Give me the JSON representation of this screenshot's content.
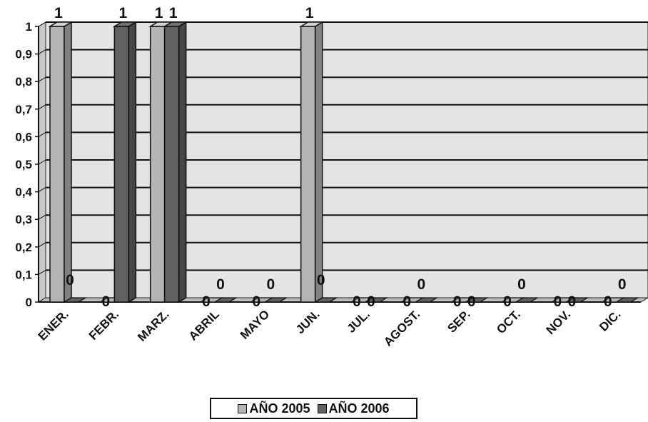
{
  "chart_data": {
    "type": "bar",
    "title": "",
    "xlabel": "",
    "ylabel": "",
    "categories": [
      "ENER.",
      "FEBR.",
      "MARZ.",
      "ABRIL",
      "MAYO",
      "JUN.",
      "JUL.",
      "AGOST.",
      "SEP.",
      "OCT.",
      "NOV.",
      "DIC."
    ],
    "series": [
      {
        "name": "AÑO 2005",
        "values": [
          1,
          0,
          1,
          0,
          0,
          1,
          0,
          0,
          0,
          0,
          0,
          0
        ],
        "color": "#b4b4b4"
      },
      {
        "name": "AÑO 2006",
        "values": [
          0,
          1,
          1,
          0,
          0,
          0,
          0,
          0,
          0,
          0,
          0,
          0
        ],
        "color": "#616161"
      }
    ],
    "yticks": [
      "0",
      "0,1",
      "0,2",
      "0,3",
      "0,4",
      "0,5",
      "0,6",
      "0,7",
      "0,8",
      "0,9",
      "1"
    ],
    "ylim": [
      0,
      1
    ],
    "data_labels": true,
    "grid": true,
    "three_d": true,
    "legend_position": "bottom"
  }
}
